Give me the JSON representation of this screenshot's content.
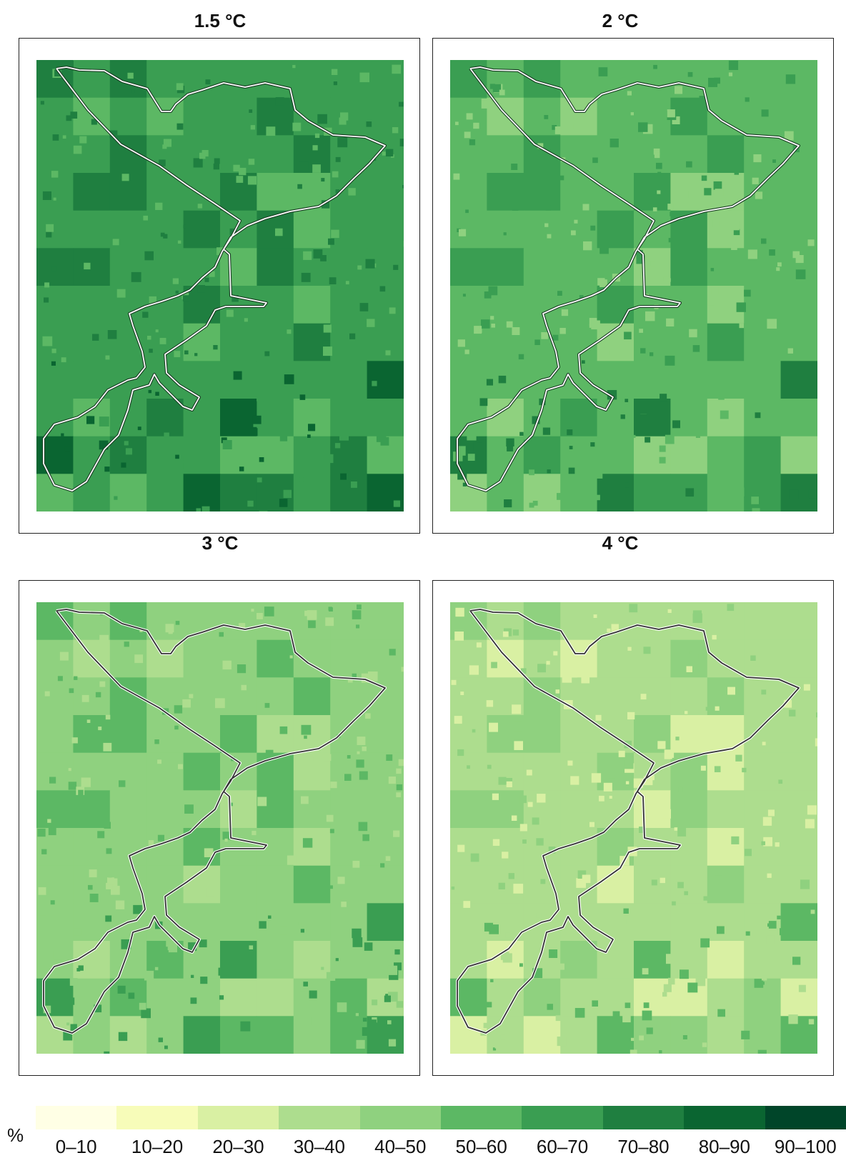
{
  "panels": [
    {
      "title": "1.5 °C",
      "base_class": 6
    },
    {
      "title": "2 °C",
      "base_class": 5
    },
    {
      "title": "3 °C",
      "base_class": 4
    },
    {
      "title": "4 °C",
      "base_class": 3
    }
  ],
  "legend": {
    "unit": "%",
    "classes": [
      {
        "label": "0–10",
        "color": "#ffffe5"
      },
      {
        "label": "10–20",
        "color": "#f7fcb9"
      },
      {
        "label": "20–30",
        "color": "#d9f0a3"
      },
      {
        "label": "30–40",
        "color": "#addd8e"
      },
      {
        "label": "40–50",
        "color": "#8fd17f"
      },
      {
        "label": "50–60",
        "color": "#5cb864"
      },
      {
        "label": "60–70",
        "color": "#3a9e52"
      },
      {
        "label": "70–80",
        "color": "#1f7f40"
      },
      {
        "label": "80–90",
        "color": "#0a6531"
      },
      {
        "label": "90–100",
        "color": "#004529"
      }
    ]
  },
  "boundary": {
    "color_dark_panels": "#ffffff",
    "color_light_panels": "#333333"
  }
}
